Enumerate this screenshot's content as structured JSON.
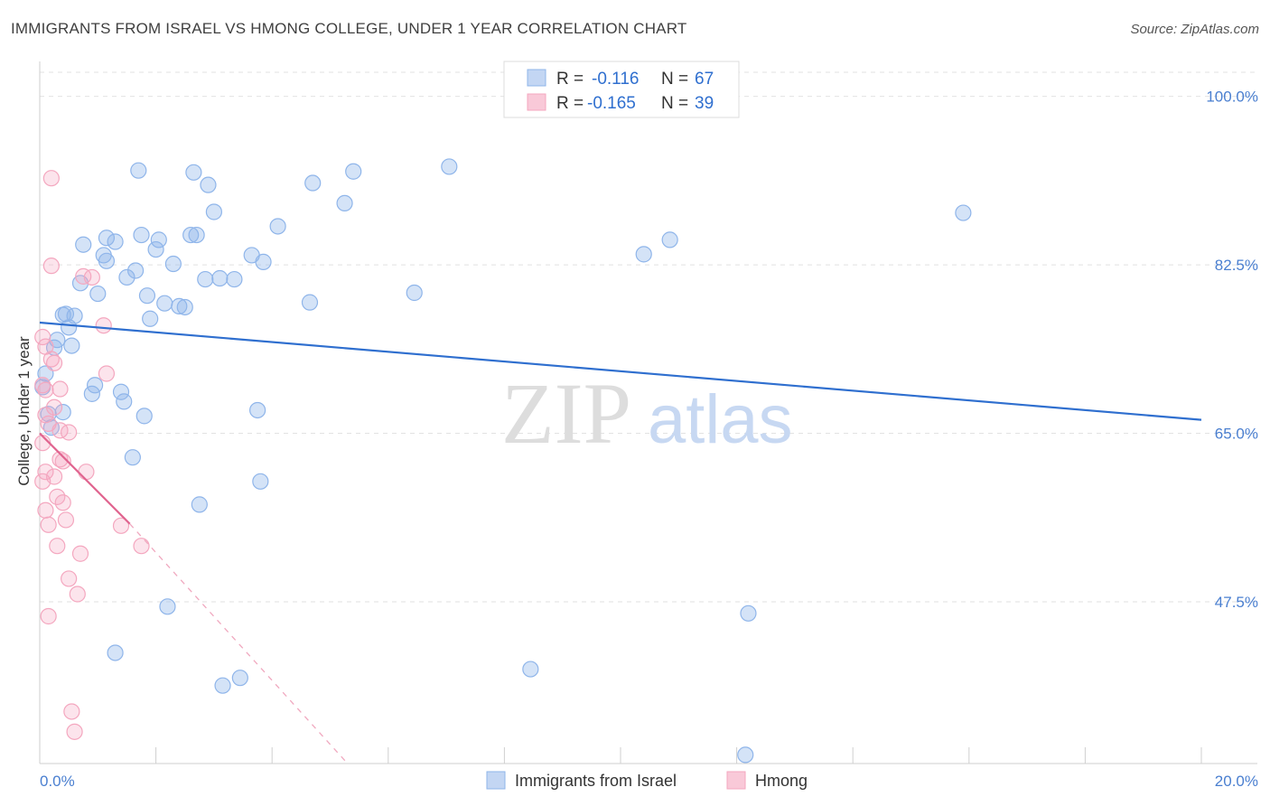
{
  "title": "IMMIGRANTS FROM ISRAEL VS HMONG COLLEGE, UNDER 1 YEAR CORRELATION CHART",
  "source": "Source: ZipAtlas.com",
  "watermark": {
    "zip": "ZIP",
    "atlas": "atlas"
  },
  "chart_data": {
    "type": "scatter",
    "ylabel": "College, Under 1 year",
    "xlim": [
      0,
      20
    ],
    "ylim": [
      30.7,
      102.5
    ],
    "y_ticks": [
      47.5,
      65.0,
      82.5,
      100.0
    ],
    "y_tick_labels": [
      "47.5%",
      "65.0%",
      "82.5%",
      "100.0%"
    ],
    "x_tick_labels": [
      "0.0%",
      "20.0%"
    ],
    "grid": true,
    "legend": {
      "rows": [
        {
          "r_label": "R =",
          "r_value": "-0.116",
          "n_label": "N =",
          "n_value": "67"
        },
        {
          "r_label": "R =",
          "r_value": "-0.165",
          "n_label": "N =",
          "n_value": "39"
        }
      ]
    },
    "series": [
      {
        "name": "Immigrants from Israel",
        "color": "#8fb5ea",
        "line_color": "#2f6fcf",
        "trend": {
          "x": [
            0,
            20
          ],
          "y": [
            76.5,
            66.4
          ],
          "dashed": false
        },
        "points": [
          [
            0.05,
            69.8
          ],
          [
            0.1,
            71.2
          ],
          [
            0.15,
            67.0
          ],
          [
            0.2,
            65.6
          ],
          [
            0.25,
            73.9
          ],
          [
            0.3,
            74.7
          ],
          [
            0.4,
            67.2
          ],
          [
            0.4,
            77.3
          ],
          [
            0.45,
            77.4
          ],
          [
            0.5,
            76.0
          ],
          [
            0.55,
            74.1
          ],
          [
            0.6,
            77.2
          ],
          [
            0.7,
            80.6
          ],
          [
            0.75,
            84.6
          ],
          [
            0.9,
            69.1
          ],
          [
            0.95,
            70.0
          ],
          [
            1.0,
            79.5
          ],
          [
            1.1,
            83.5
          ],
          [
            1.15,
            82.9
          ],
          [
            1.15,
            85.3
          ],
          [
            1.3,
            84.9
          ],
          [
            1.4,
            69.3
          ],
          [
            1.45,
            68.3
          ],
          [
            1.5,
            81.2
          ],
          [
            1.6,
            62.5
          ],
          [
            1.65,
            81.9
          ],
          [
            1.7,
            92.3
          ],
          [
            1.75,
            85.6
          ],
          [
            1.8,
            66.8
          ],
          [
            1.85,
            79.3
          ],
          [
            1.9,
            76.9
          ],
          [
            2.0,
            84.1
          ],
          [
            2.05,
            85.1
          ],
          [
            2.15,
            78.5
          ],
          [
            2.2,
            47.0
          ],
          [
            2.3,
            82.6
          ],
          [
            2.4,
            78.2
          ],
          [
            2.5,
            78.1
          ],
          [
            2.6,
            85.6
          ],
          [
            2.65,
            92.1
          ],
          [
            2.7,
            85.6
          ],
          [
            2.75,
            57.6
          ],
          [
            2.85,
            81.0
          ],
          [
            2.9,
            90.8
          ],
          [
            3.0,
            88.0
          ],
          [
            3.1,
            81.1
          ],
          [
            3.15,
            38.8
          ],
          [
            3.35,
            81.0
          ],
          [
            3.45,
            39.6
          ],
          [
            3.65,
            83.5
          ],
          [
            3.75,
            67.4
          ],
          [
            3.8,
            60.0
          ],
          [
            3.85,
            82.8
          ],
          [
            4.1,
            86.5
          ],
          [
            4.65,
            78.6
          ],
          [
            4.7,
            91.0
          ],
          [
            5.25,
            88.9
          ],
          [
            5.4,
            92.2
          ],
          [
            6.45,
            79.6
          ],
          [
            7.05,
            92.7
          ],
          [
            1.3,
            42.2
          ],
          [
            8.45,
            40.5
          ],
          [
            10.4,
            83.6
          ],
          [
            10.85,
            85.1
          ],
          [
            12.15,
            31.6
          ],
          [
            12.2,
            46.3
          ],
          [
            15.9,
            87.9
          ]
        ]
      },
      {
        "name": "Hmong",
        "color": "#f4a7bf",
        "line_color": "#e0648f",
        "trend": {
          "x": [
            0,
            1.55
          ],
          "y": [
            65.0,
            55.6
          ],
          "dashed_x_end": 5.3,
          "dashed_y_end": 30.7
        },
        "points": [
          [
            0.05,
            75.0
          ],
          [
            0.05,
            70.0
          ],
          [
            0.05,
            64.0
          ],
          [
            0.05,
            60.0
          ],
          [
            0.1,
            74.0
          ],
          [
            0.1,
            69.5
          ],
          [
            0.1,
            61.0
          ],
          [
            0.1,
            57.0
          ],
          [
            0.15,
            66.0
          ],
          [
            0.15,
            55.5
          ],
          [
            0.15,
            46.0
          ],
          [
            0.2,
            91.5
          ],
          [
            0.2,
            82.4
          ],
          [
            0.2,
            72.7
          ],
          [
            0.25,
            72.3
          ],
          [
            0.25,
            67.7
          ],
          [
            0.25,
            60.5
          ],
          [
            0.3,
            58.4
          ],
          [
            0.3,
            53.3
          ],
          [
            0.35,
            69.6
          ],
          [
            0.35,
            65.3
          ],
          [
            0.35,
            62.3
          ],
          [
            0.4,
            62.1
          ],
          [
            0.4,
            57.8
          ],
          [
            0.45,
            56.0
          ],
          [
            0.5,
            65.1
          ],
          [
            0.5,
            49.9
          ],
          [
            0.55,
            36.1
          ],
          [
            0.6,
            34.0
          ],
          [
            0.65,
            48.3
          ],
          [
            0.7,
            52.5
          ],
          [
            0.75,
            81.3
          ],
          [
            0.8,
            61.0
          ],
          [
            0.9,
            81.2
          ],
          [
            1.1,
            76.2
          ],
          [
            1.15,
            71.2
          ],
          [
            1.4,
            55.4
          ],
          [
            1.75,
            53.3
          ],
          [
            0.1,
            66.9
          ]
        ]
      }
    ]
  },
  "bottom_legend": [
    "Immigrants from Israel",
    "Hmong"
  ]
}
